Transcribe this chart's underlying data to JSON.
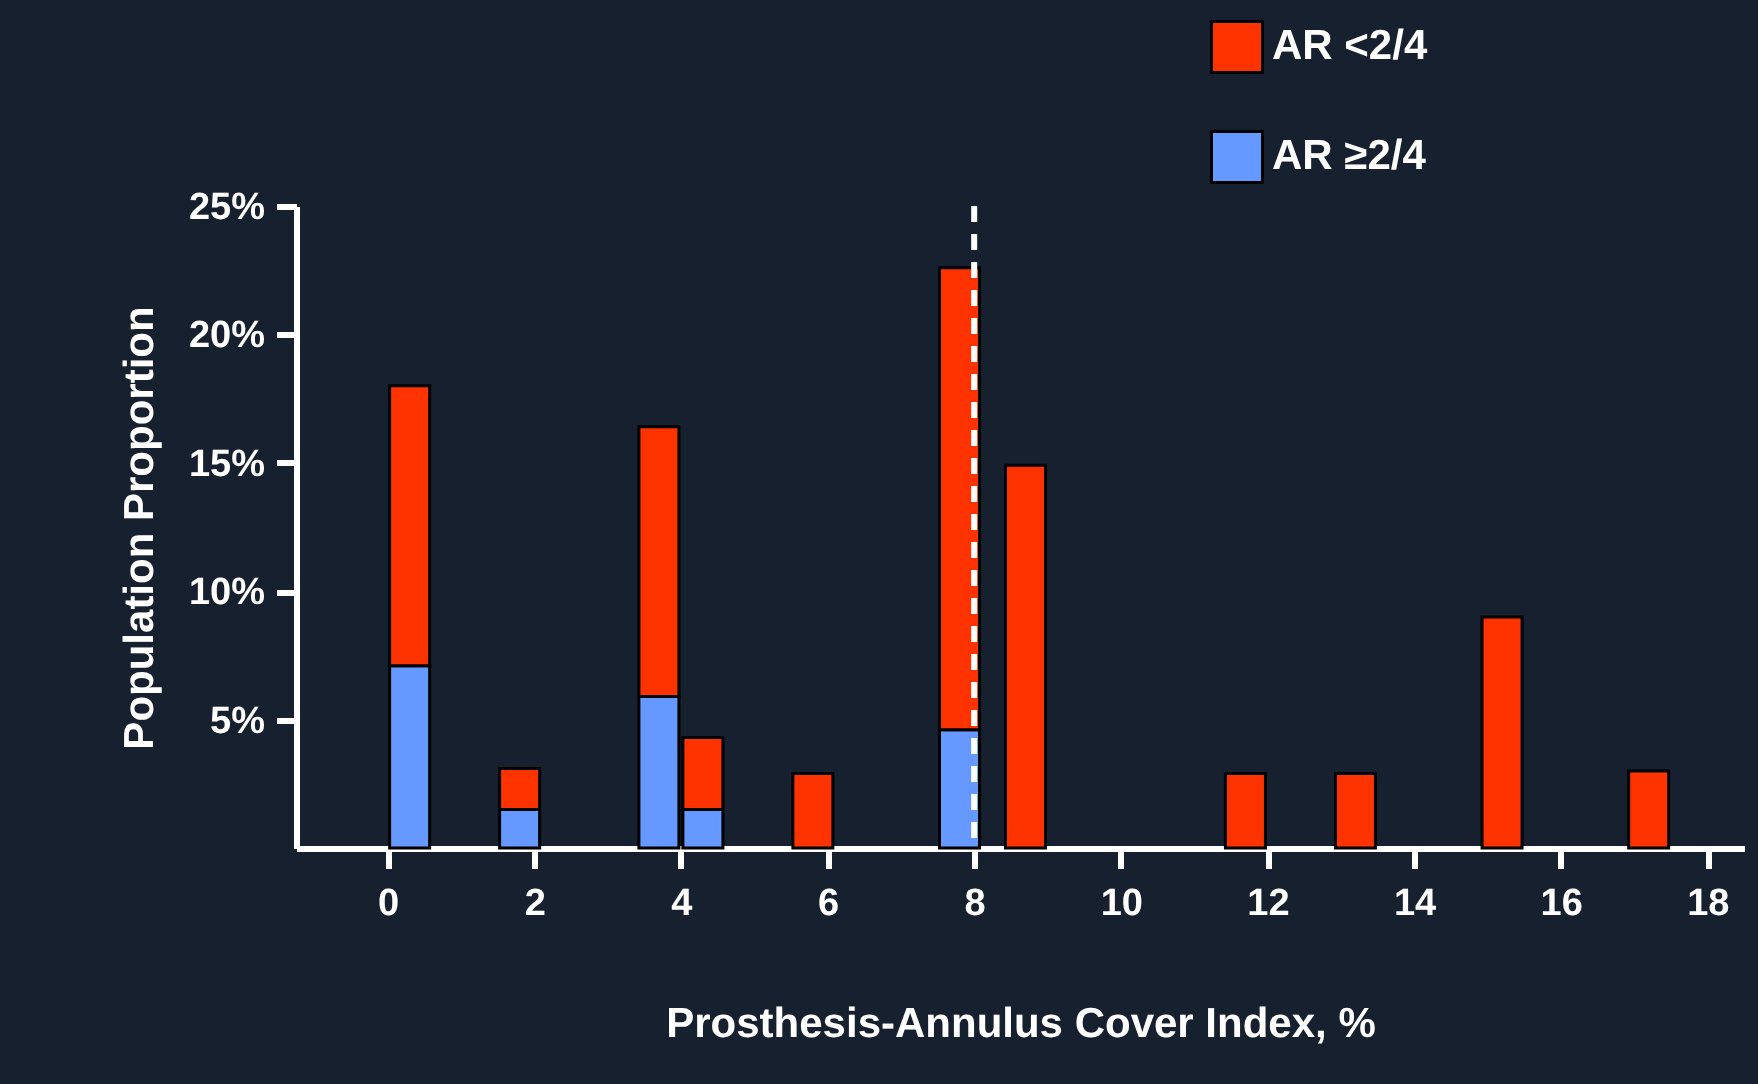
{
  "chart_data": {
    "type": "bar",
    "stacked": true,
    "xlabel": "Prosthesis-Annulus Cover Index, %",
    "ylabel": "Population Proportion",
    "x": [
      0.3,
      1.8,
      3.7,
      4.3,
      5.8,
      7.8,
      8.7,
      11.7,
      13.2,
      15.2,
      17.2
    ],
    "series": [
      {
        "name": "AR ≥2/4",
        "color": "#6699ff",
        "values": [
          7.1,
          1.5,
          5.9,
          1.5,
          null,
          4.6,
          null,
          null,
          null,
          null,
          null
        ]
      },
      {
        "name": "AR <2/4",
        "color": "#ff3300",
        "values": [
          10.9,
          1.6,
          10.5,
          2.8,
          2.9,
          18.0,
          14.9,
          2.9,
          2.9,
          9.0,
          3.0
        ]
      }
    ],
    "xlim": [
      -1.25,
      18.5
    ],
    "xticks": [
      0,
      2,
      4,
      6,
      8,
      10,
      12,
      14,
      16,
      18
    ],
    "ylim": [
      0,
      25
    ],
    "yticks": [
      {
        "value": 5,
        "label": "5%"
      },
      {
        "value": 10,
        "label": "10%"
      },
      {
        "value": 15,
        "label": "15%"
      },
      {
        "value": 20,
        "label": "20%"
      },
      {
        "value": 25,
        "label": "25%"
      }
    ],
    "ref_lines": [
      {
        "axis": "x",
        "value": 8,
        "color": "#ffffff",
        "line_style": "dashed"
      }
    ],
    "legend": "top right"
  }
}
